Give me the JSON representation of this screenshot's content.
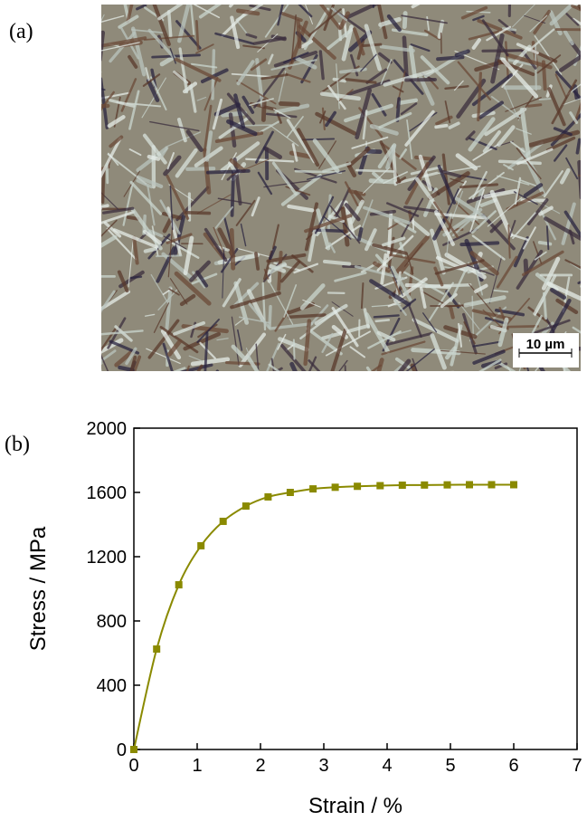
{
  "panel_labels": [
    "(a)",
    "(b)"
  ],
  "micrograph": {
    "scale_bar": "10 µm"
  },
  "chart_data": {
    "type": "line",
    "x_label": "Strain / %",
    "y_label": "Stress / MPa",
    "x": [
      0,
      0.36,
      0.71,
      1.06,
      1.41,
      1.77,
      2.12,
      2.47,
      2.83,
      3.18,
      3.53,
      3.89,
      4.24,
      4.59,
      4.95,
      5.3,
      5.65,
      6.0
    ],
    "series": [
      {
        "color": "#8a8a00",
        "values": [
          0,
          625,
          1025,
          1268,
          1420,
          1515,
          1572,
          1600,
          1622,
          1632,
          1638,
          1642,
          1645,
          1646,
          1647,
          1648,
          1648,
          1648
        ]
      }
    ],
    "xlim": [
      0,
      7
    ],
    "xticks": [
      0,
      1,
      2,
      3,
      4,
      5,
      6,
      7
    ],
    "ylim": [
      0,
      2000
    ],
    "yticks": [
      0,
      400,
      800,
      1200,
      1600,
      2000
    ],
    "markers": "square"
  }
}
